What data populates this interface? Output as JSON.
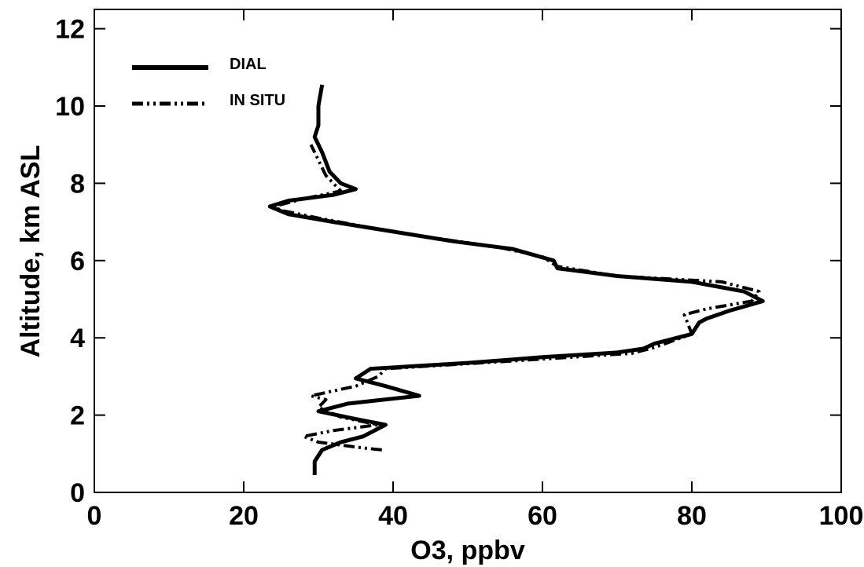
{
  "chart_data": {
    "type": "line",
    "xlabel": "O3, ppbv",
    "ylabel": "Altitude, km ASL",
    "xlim": [
      0,
      100
    ],
    "xticks": [
      0,
      20,
      40,
      60,
      80,
      100
    ],
    "ylim": [
      0,
      12.5
    ],
    "yticks": [
      0,
      2,
      4,
      6,
      8,
      10,
      12
    ],
    "legend": "upper-left",
    "series": [
      {
        "name": "DIAL",
        "color": "#000000",
        "linestyle": "solid",
        "x": [
          29.5,
          29.5,
          30.5,
          33,
          36,
          39,
          35,
          30,
          34,
          43.5,
          39,
          35,
          37,
          50,
          60,
          70,
          73.5,
          75,
          80,
          81,
          82,
          85,
          89.5,
          87,
          80,
          70,
          62,
          61.5,
          56,
          48,
          40,
          32,
          26,
          23.5,
          26,
          32,
          35,
          33,
          31.5,
          30.5,
          29.5,
          30,
          30,
          30.5
        ],
        "values": [
          0.45,
          0.8,
          1.1,
          1.3,
          1.45,
          1.75,
          1.9,
          2.1,
          2.3,
          2.5,
          2.75,
          2.95,
          3.2,
          3.35,
          3.5,
          3.62,
          3.72,
          3.85,
          4.1,
          4.4,
          4.5,
          4.7,
          4.95,
          5.2,
          5.45,
          5.6,
          5.8,
          6.0,
          6.3,
          6.5,
          6.75,
          7.0,
          7.2,
          7.4,
          7.55,
          7.7,
          7.85,
          8.0,
          8.3,
          8.8,
          9.2,
          9.5,
          10.0,
          10.55
        ]
      },
      {
        "name": "IN SITU",
        "color": "#000000",
        "linestyle": "dash-dot",
        "x": [
          38.5,
          36,
          30,
          28,
          32,
          38,
          33,
          30,
          31,
          29,
          35,
          38,
          39,
          50,
          60,
          72,
          75,
          80,
          79,
          82,
          88,
          89,
          84,
          70,
          62,
          60,
          54,
          45,
          37,
          30,
          25,
          24,
          28,
          33,
          31,
          29.5,
          29
        ],
        "values": [
          1.1,
          1.15,
          1.3,
          1.45,
          1.6,
          1.75,
          1.95,
          2.2,
          2.4,
          2.5,
          2.75,
          3.0,
          3.2,
          3.33,
          3.45,
          3.6,
          3.75,
          4.1,
          4.6,
          4.75,
          4.95,
          5.2,
          5.45,
          5.6,
          5.85,
          6.1,
          6.35,
          6.6,
          6.85,
          7.1,
          7.3,
          7.4,
          7.6,
          7.8,
          8.2,
          8.8,
          9.0
        ]
      }
    ]
  }
}
